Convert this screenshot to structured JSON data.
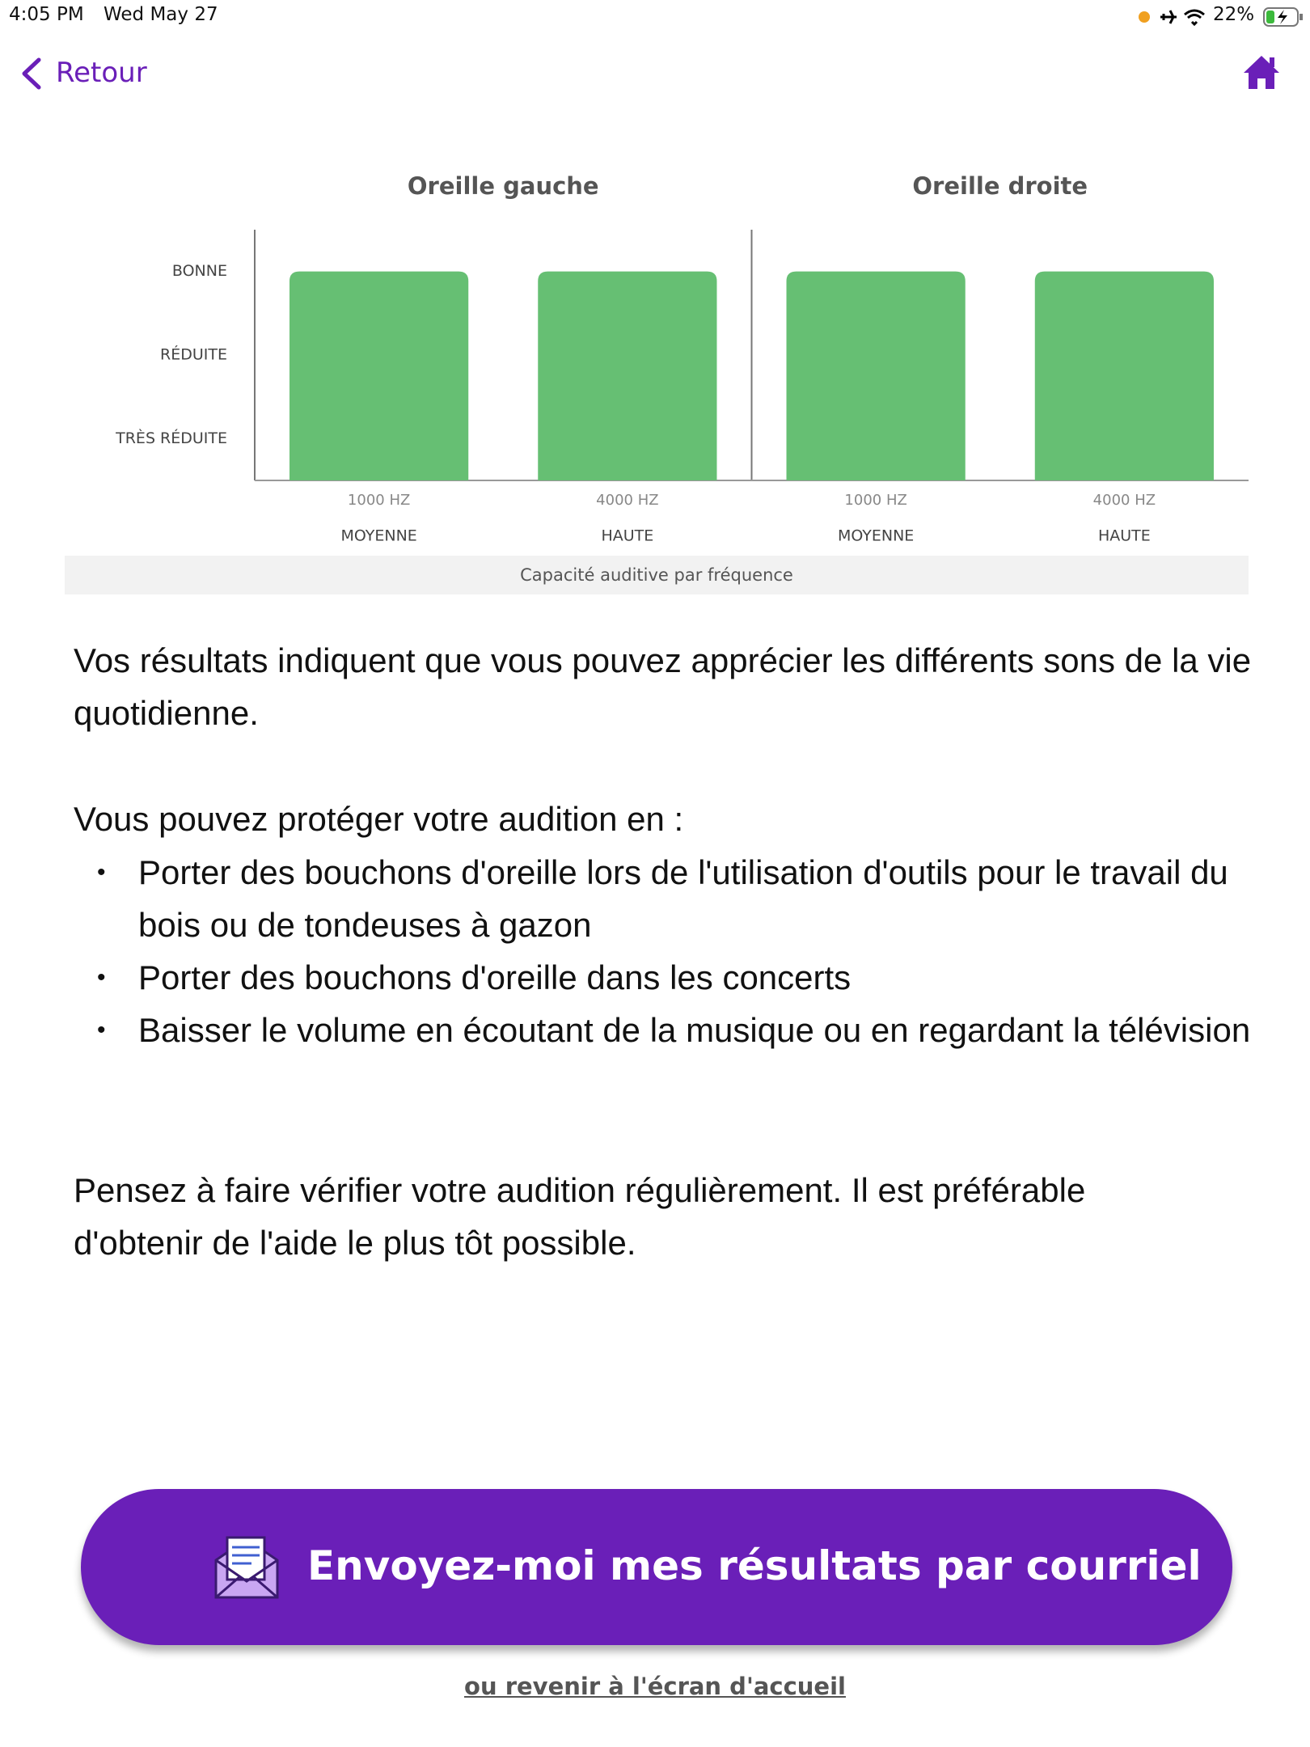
{
  "status_bar": {
    "time": "4:05 PM",
    "date": "Wed May 27",
    "battery": "22%"
  },
  "nav": {
    "back": "Retour"
  },
  "chart_data": {
    "type": "bar",
    "panels": [
      "Oreille gauche",
      "Oreille droite"
    ],
    "categories": [
      "1000 HZ",
      "4000 HZ",
      "1000 HZ",
      "4000 HZ"
    ],
    "category_groups": [
      "MOYENNE",
      "HAUTE",
      "MOYENNE",
      "HAUTE"
    ],
    "values": [
      3,
      3,
      3,
      3
    ],
    "color": "#66bf73",
    "ylim": [
      0.5,
      3.5
    ],
    "yticks": [
      {
        "value": 1,
        "label": "TRÈS RÉDUITE"
      },
      {
        "value": 2,
        "label": "RÉDUITE"
      },
      {
        "value": 3,
        "label": "BONNE"
      }
    ],
    "caption": "Capacité auditive par fréquence"
  },
  "results": {
    "summary": "Vos résultats indiquent que vous pouvez apprécier les différents sons de la vie quotidienne.",
    "protect_intro": "Vous pouvez protéger votre audition en :",
    "tips": [
      "Porter des bouchons d'oreille lors de l'utilisation d'outils pour le travail du bois ou de tondeuses à gazon",
      "Porter des bouchons d'oreille dans les concerts",
      "Baisser le volume en écoutant de la musique ou en regardant la télévision"
    ],
    "reminder": "Pensez à faire vérifier votre audition régulièrement. Il est préférable d'obtenir de l'aide le plus tôt possible."
  },
  "button": {
    "label": "Envoyez-moi mes résultats par courriel"
  },
  "link": {
    "label": "ou revenir à l'écran d'accueil"
  }
}
